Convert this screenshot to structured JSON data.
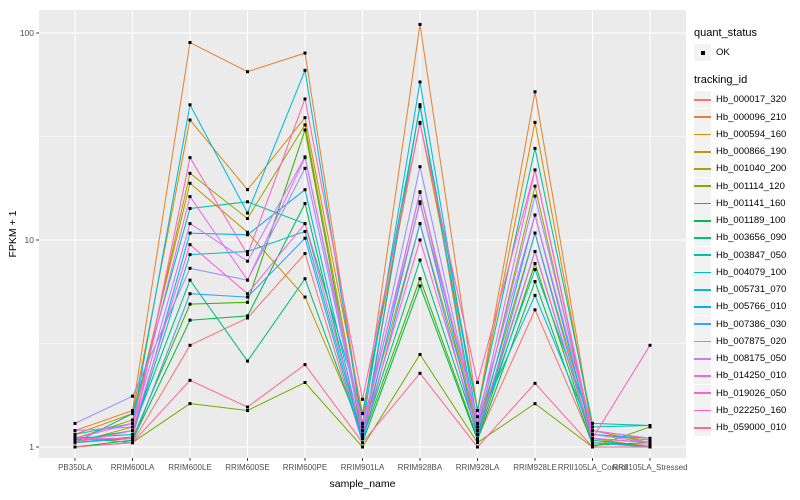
{
  "style": {
    "panel_bg": "#EBEBEB",
    "grid_color": "#FFFFFF",
    "tick_label_color": "#4D4D4D",
    "axis_tick_color": "#333333",
    "legend_key_bg": "#F2F2F2",
    "point_color": "#000000"
  },
  "legends": {
    "quant_status": {
      "title": "quant_status",
      "items": [
        {
          "label": "OK",
          "marker": "point-icon"
        }
      ]
    },
    "tracking_id": {
      "title": "tracking_id"
    }
  },
  "chart_data": {
    "type": "line",
    "title": "",
    "xlabel": "sample_name",
    "ylabel": "FPKM + 1",
    "yscale": "log10",
    "ylim": [
      0.95,
      135
    ],
    "ytick_values": [
      1,
      10,
      100
    ],
    "ytick_labels": [
      "1",
      "10",
      "100"
    ],
    "yminor_values": [
      3.1623,
      31.623
    ],
    "grid": true,
    "legend_position": "right",
    "marker": {
      "shape": "square",
      "color": "#000000",
      "label": "OK"
    },
    "x_categories": [
      "PB350LA",
      "RRIM600LA",
      "RRIM600LE",
      "RRIM600SE",
      "RRIM600PE",
      "RRIM901LA",
      "RRIM928BA",
      "RRIM928LA",
      "RRIM928LE",
      "RRII105LA_Control",
      "RRII105LA_Stressed"
    ],
    "series": [
      {
        "name": "Hb_000017_320",
        "color": "#F8766D",
        "values": [
          1.12,
          1.05,
          3.1,
          4.2,
          8.6,
          1.05,
          45,
          1.1,
          4.6,
          1.05,
          1.02
        ]
      },
      {
        "name": "Hb_000096_210",
        "color": "#EA8331",
        "values": [
          1.2,
          1.5,
          90,
          65,
          80,
          1.3,
          110,
          1.5,
          52,
          1.2,
          1.1
        ]
      },
      {
        "name": "Hb_000594_160",
        "color": "#D89000",
        "values": [
          1.15,
          1.45,
          38,
          17.5,
          39,
          1.45,
          37,
          1.5,
          37,
          1.2,
          1.05
        ]
      },
      {
        "name": "Hb_000866_190",
        "color": "#C09B00",
        "values": [
          1.1,
          1.35,
          18.8,
          10.9,
          5.3,
          1.2,
          12,
          1.25,
          10.8,
          1.15,
          1.08
        ]
      },
      {
        "name": "Hb_001040_200",
        "color": "#A3A500",
        "values": [
          1.05,
          1.25,
          21,
          12.7,
          36,
          1.2,
          17,
          1.2,
          18.2,
          1.1,
          1.0
        ]
      },
      {
        "name": "Hb_001114_120",
        "color": "#7CAE00",
        "values": [
          1.0,
          1.05,
          1.62,
          1.5,
          2.05,
          1.0,
          2.8,
          1.05,
          1.62,
          1.0,
          1.25
        ]
      },
      {
        "name": "Hb_001141_160",
        "color": "#39B600",
        "values": [
          1.05,
          1.1,
          4.9,
          5.0,
          34,
          1.1,
          6.5,
          1.1,
          7.7,
          1.05,
          1.0
        ]
      },
      {
        "name": "Hb_001189_100",
        "color": "#00BB4E",
        "values": [
          1.0,
          1.08,
          4.1,
          4.3,
          15,
          1.05,
          6.0,
          1.08,
          6.3,
          1.02,
          1.05
        ]
      },
      {
        "name": "Hb_003656_090",
        "color": "#00BF7D",
        "values": [
          1.08,
          1.2,
          6.4,
          2.6,
          6.5,
          1.12,
          8.0,
          1.15,
          8.8,
          1.08,
          1.0
        ]
      },
      {
        "name": "Hb_003847_050",
        "color": "#00C1A3",
        "values": [
          1.05,
          1.45,
          14.2,
          15.3,
          12,
          1.45,
          44,
          1.5,
          27.7,
          1.3,
          1.27
        ]
      },
      {
        "name": "Hb_004079_100",
        "color": "#00BFC4",
        "values": [
          1.1,
          1.15,
          8.5,
          8.8,
          11,
          1.1,
          45,
          1.2,
          7.2,
          1.25,
          1.27
        ]
      },
      {
        "name": "Hb_005731_070",
        "color": "#00BAE0",
        "values": [
          1.15,
          1.3,
          45,
          13.5,
          66,
          1.25,
          58,
          1.3,
          5.4,
          1.15,
          1.1
        ]
      },
      {
        "name": "Hb_005766_010",
        "color": "#00B0F6",
        "values": [
          1.05,
          1.12,
          10.8,
          10.6,
          17.5,
          1.1,
          15.3,
          1.15,
          13.2,
          1.1,
          1.05
        ]
      },
      {
        "name": "Hb_007386_030",
        "color": "#35A2FF",
        "values": [
          1.1,
          1.05,
          5.5,
          5.3,
          10.2,
          1.05,
          12,
          1.1,
          10.8,
          1.05,
          1.0
        ]
      },
      {
        "name": "Hb_007875_020",
        "color": "#9590FF",
        "values": [
          1.3,
          1.76,
          7.3,
          6.4,
          22.2,
          1.2,
          22.6,
          1.25,
          16.3,
          1.2,
          1.1
        ]
      },
      {
        "name": "Hb_008175_050",
        "color": "#C77CFF",
        "values": [
          1.2,
          1.25,
          12,
          7.9,
          25.2,
          1.2,
          17.1,
          1.3,
          21.8,
          1.15,
          1.05
        ]
      },
      {
        "name": "Hb_014250_010",
        "color": "#E76BF3",
        "values": [
          1.1,
          1.3,
          16.2,
          6.4,
          25,
          1.3,
          15,
          1.4,
          13.2,
          1.2,
          1.1
        ]
      },
      {
        "name": "Hb_019026_050",
        "color": "#FA62DB",
        "values": [
          1.05,
          1.2,
          9.5,
          5.5,
          12,
          1.15,
          10,
          1.2,
          8.8,
          1.1,
          1.05
        ]
      },
      {
        "name": "Hb_022250_160",
        "color": "#FF62BC",
        "values": [
          1.1,
          1.1,
          25,
          8.5,
          48,
          1.7,
          36.6,
          2.05,
          21.8,
          1.1,
          3.1
        ]
      },
      {
        "name": "Hb_059000_010",
        "color": "#FF6A98",
        "values": [
          1.0,
          1.05,
          2.1,
          1.56,
          2.5,
          1.05,
          2.27,
          1.0,
          2.03,
          1.0,
          1.0
        ]
      }
    ]
  }
}
